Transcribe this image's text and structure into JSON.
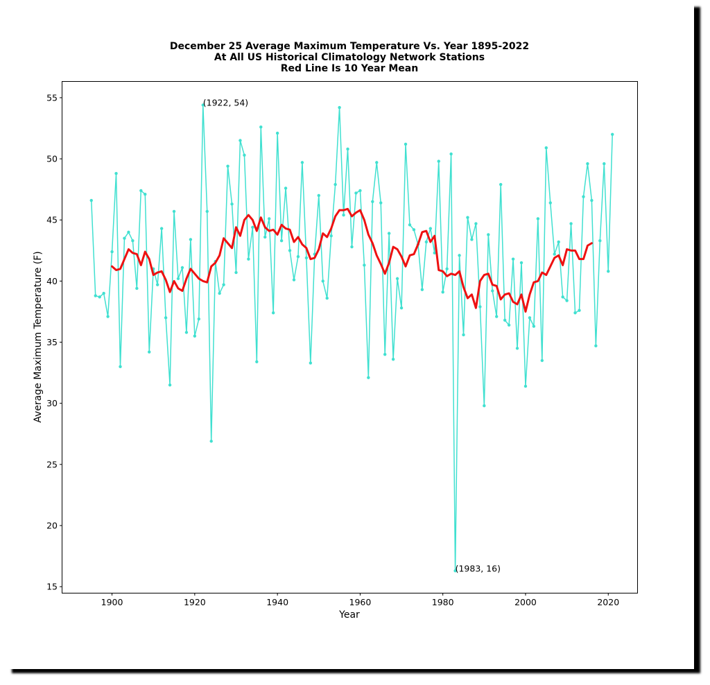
{
  "chart_data": {
    "type": "line",
    "title": [
      "December 25 Average Maximum Temperature Vs. Year 1895-2022",
      "At All US Historical Climatology Network Stations",
      "Red Line Is 10 Year Mean"
    ],
    "xlabel": "Year",
    "ylabel": "Average Maximum Temperature (F)",
    "xlim": [
      1888,
      2027
    ],
    "ylim": [
      14.5,
      56.3
    ],
    "xticks": [
      1900,
      1920,
      1940,
      1960,
      1980,
      2000,
      2020
    ],
    "yticks": [
      15,
      20,
      25,
      30,
      35,
      40,
      45,
      50,
      55
    ],
    "grid": false,
    "series": [
      {
        "role": "annual",
        "color": "#40e0d0",
        "x_start": 1895,
        "values": [
          46.6,
          38.8,
          38.7,
          39.0,
          37.1,
          42.4,
          48.8,
          33.0,
          43.5,
          44.0,
          43.3,
          39.4,
          47.4,
          47.1,
          34.2,
          41.0,
          39.7,
          44.3,
          37.0,
          31.5,
          45.7,
          40.2,
          41.1,
          35.8,
          43.4,
          35.5,
          36.9,
          54.4,
          45.7,
          26.9,
          41.6,
          39.0,
          39.7,
          49.4,
          46.3,
          40.7,
          51.5,
          50.3,
          41.8,
          44.4,
          33.4,
          52.6,
          43.6,
          45.1,
          37.4,
          52.1,
          43.3,
          47.6,
          42.5,
          40.1,
          42.0,
          49.7,
          41.9,
          33.3,
          42.2,
          47.0,
          40.0,
          38.6,
          43.7,
          47.9,
          54.2,
          45.4,
          50.8,
          42.8,
          47.2,
          47.4,
          41.3,
          32.1,
          46.5,
          49.7,
          46.4,
          34.0,
          43.9,
          33.6,
          40.2,
          37.8,
          51.2,
          44.6,
          44.2,
          43.0,
          39.3,
          43.2,
          44.3,
          42.3,
          49.8,
          39.1,
          41.0,
          50.4,
          16.3,
          42.1,
          35.6,
          45.2,
          43.4,
          44.7,
          37.9,
          29.8,
          43.8,
          39.2,
          37.1,
          47.9,
          36.8,
          36.4,
          41.8,
          34.5,
          41.5,
          31.4,
          37.0,
          36.3,
          45.1,
          33.5,
          50.9,
          46.4,
          42.2,
          43.2,
          38.7,
          38.4,
          44.7,
          37.4,
          37.6,
          46.9,
          49.6,
          46.6,
          34.7,
          43.3,
          49.6,
          40.8,
          52.0
        ]
      },
      {
        "role": "10-year mean",
        "color": "#ee1111",
        "x_start": 1900,
        "values": [
          41.2,
          40.9,
          41.0,
          41.8,
          42.6,
          42.3,
          42.2,
          41.3,
          42.4,
          41.8,
          40.5,
          40.7,
          40.8,
          40.1,
          39.1,
          40.0,
          39.4,
          39.2,
          40.2,
          41.0,
          40.6,
          40.2,
          40.0,
          39.9,
          41.2,
          41.5,
          42.1,
          43.5,
          43.1,
          42.7,
          44.4,
          43.7,
          45.0,
          45.4,
          45.0,
          44.1,
          45.2,
          44.4,
          44.1,
          44.2,
          43.8,
          44.6,
          44.3,
          44.2,
          43.2,
          43.6,
          43.0,
          42.7,
          41.8,
          41.9,
          42.6,
          43.9,
          43.6,
          44.3,
          45.3,
          45.8,
          45.8,
          45.9,
          45.3,
          45.6,
          45.8,
          45.0,
          43.8,
          43.1,
          42.1,
          41.4,
          40.6,
          41.5,
          42.8,
          42.6,
          42.0,
          41.2,
          42.1,
          42.2,
          43.0,
          44.0,
          44.1,
          43.2,
          43.7,
          40.9,
          40.8,
          40.4,
          40.6,
          40.5,
          40.8,
          39.5,
          38.6,
          38.9,
          37.8,
          40.0,
          40.5,
          40.6,
          39.7,
          39.6,
          38.5,
          38.9,
          39.0,
          38.3,
          38.1,
          38.9,
          37.5,
          38.9,
          39.9,
          40.0,
          40.7,
          40.5,
          41.2,
          41.9,
          42.1,
          41.3,
          42.6,
          42.5,
          42.5,
          41.8,
          41.8,
          42.9,
          43.1
        ]
      }
    ],
    "annotations": [
      {
        "text": "(1922, 54)",
        "x": 1922,
        "y": 54.4
      },
      {
        "text": "(1983, 16)",
        "x": 1983,
        "y": 16.3
      }
    ]
  }
}
